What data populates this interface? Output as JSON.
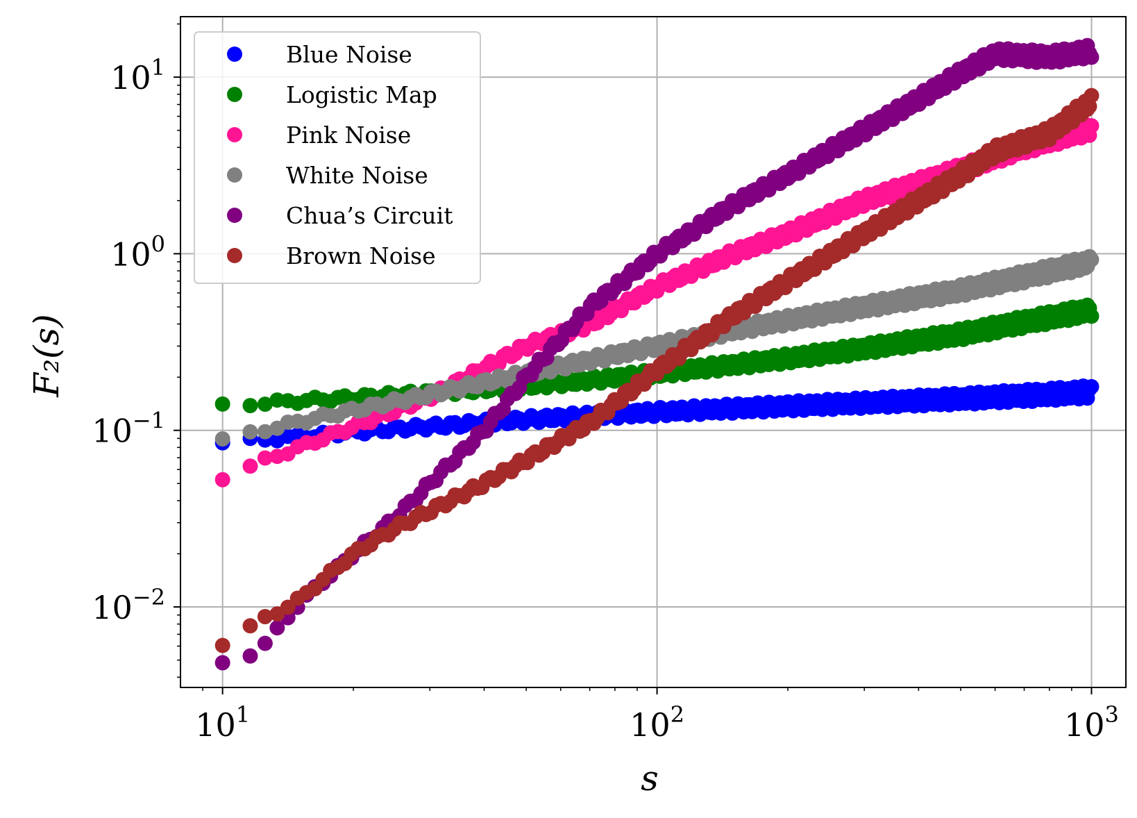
{
  "chart_data": {
    "type": "scatter",
    "title": "",
    "xlabel": "s",
    "ylabel": "F₂(s)",
    "xscale": "log",
    "yscale": "log",
    "xlim": [
      8,
      1200
    ],
    "ylim": [
      0.0035,
      22
    ],
    "grid": true,
    "legend_position": "top-left",
    "x_ticks": [
      {
        "value": 10,
        "base": "10",
        "exp": "1"
      },
      {
        "value": 100,
        "base": "10",
        "exp": "2"
      },
      {
        "value": 1000,
        "base": "10",
        "exp": "3"
      }
    ],
    "y_ticks": [
      {
        "value": 0.01,
        "base": "10",
        "exp": "−2"
      },
      {
        "value": 0.1,
        "base": "10",
        "exp": "−1"
      },
      {
        "value": 1,
        "base": "10",
        "exp": "0"
      },
      {
        "value": 10,
        "base": "10",
        "exp": "1"
      }
    ],
    "series": [
      {
        "name": "Blue Noise",
        "color": "#0000ff",
        "x": [
          10,
          12,
          15,
          20,
          30,
          50,
          70,
          100,
          150,
          200,
          300,
          500,
          700,
          1000
        ],
        "y": [
          0.085,
          0.088,
          0.092,
          0.098,
          0.105,
          0.115,
          0.121,
          0.127,
          0.133,
          0.137,
          0.143,
          0.151,
          0.157,
          0.165
        ]
      },
      {
        "name": "Logistic Map",
        "color": "#008000",
        "x": [
          10,
          12,
          15,
          20,
          30,
          50,
          70,
          100,
          150,
          200,
          300,
          500,
          700,
          1000
        ],
        "y": [
          0.138,
          0.142,
          0.147,
          0.153,
          0.163,
          0.178,
          0.192,
          0.21,
          0.235,
          0.255,
          0.29,
          0.35,
          0.41,
          0.48
        ]
      },
      {
        "name": "Pink Noise",
        "color": "#ff1493",
        "x": [
          10,
          12,
          15,
          20,
          30,
          50,
          70,
          100,
          150,
          200,
          300,
          500,
          700,
          1000
        ],
        "y": [
          0.054,
          0.065,
          0.08,
          0.105,
          0.155,
          0.3,
          0.4,
          0.65,
          1.0,
          1.3,
          2.0,
          3.0,
          4.0,
          5.1
        ]
      },
      {
        "name": "White Noise",
        "color": "#808080",
        "x": [
          10,
          12,
          15,
          20,
          30,
          50,
          70,
          100,
          150,
          200,
          300,
          500,
          700,
          1000
        ],
        "y": [
          0.088,
          0.098,
          0.112,
          0.13,
          0.16,
          0.21,
          0.25,
          0.3,
          0.37,
          0.42,
          0.5,
          0.62,
          0.74,
          0.9
        ]
      },
      {
        "name": "Chua’s Circuit",
        "color": "#800080",
        "x": [
          10,
          11,
          12,
          13,
          15,
          20,
          25,
          30,
          40,
          50,
          70,
          100,
          150,
          200,
          300,
          400,
          500,
          600,
          800,
          1000
        ],
        "y": [
          0.0048,
          0.0052,
          0.0056,
          0.0068,
          0.0105,
          0.02,
          0.032,
          0.05,
          0.1,
          0.2,
          0.5,
          1.0,
          1.9,
          2.8,
          5.0,
          7.5,
          10.5,
          13.5,
          13.0,
          14.0
        ]
      },
      {
        "name": "Brown Noise",
        "color": "#a52a2a",
        "x": [
          10,
          11,
          12,
          13,
          15,
          20,
          25,
          30,
          40,
          50,
          70,
          100,
          150,
          200,
          300,
          400,
          500,
          600,
          800,
          1000
        ],
        "y": [
          0.0062,
          0.007,
          0.0082,
          0.009,
          0.011,
          0.02,
          0.028,
          0.035,
          0.05,
          0.068,
          0.11,
          0.22,
          0.45,
          0.7,
          1.3,
          2.0,
          2.8,
          3.8,
          4.8,
          7.3
        ]
      }
    ]
  }
}
